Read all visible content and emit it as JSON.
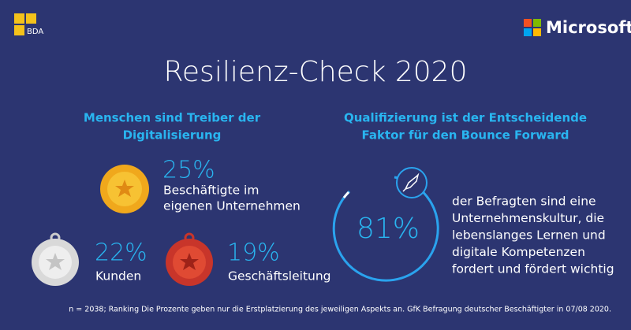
{
  "header": {
    "logo_left": "BDA",
    "logo_right": "Microsoft",
    "title": "Resilienz-Check 2020"
  },
  "left": {
    "heading": [
      "Menschen sind Treiber der",
      "Digitalisierung"
    ],
    "items": [
      {
        "value": "25%",
        "label": [
          "Beschäftigte im",
          "eigenen Unternehmen"
        ]
      },
      {
        "value": "22%",
        "label": [
          "Kunden"
        ]
      },
      {
        "value": "19%",
        "label": [
          "Geschäftsleitung"
        ]
      }
    ]
  },
  "right": {
    "heading": [
      "Qualifizierung ist der Entscheidende",
      "Faktor für den Bounce Forward"
    ],
    "value": "81%",
    "text": [
      "der Befragten sind eine",
      "Unternehmenskultur, die",
      "lebenslanges Lernen und",
      "digitale Kompetenzen",
      "fordert und fördert wichtig"
    ]
  },
  "footnote": "n = 2038; Ranking Die Prozente geben nur die Erstplatzierung des jeweiligen Aspekts an. GfK Befragung deutscher Beschäftigter in 07/08 2020."
}
